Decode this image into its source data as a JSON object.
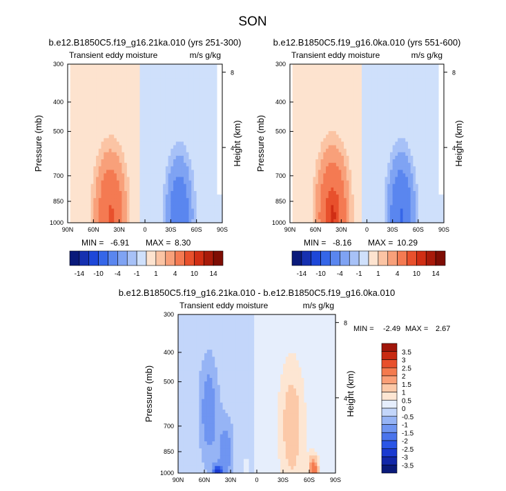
{
  "figure": {
    "title": "SON"
  },
  "colors": {
    "palette": [
      "#0a1a7a",
      "#1530b0",
      "#1e47d8",
      "#3566e8",
      "#5a86ef",
      "#7fa3f3",
      "#a7c1f7",
      "#cfe0fb",
      "#fde3cf",
      "#fbc4a4",
      "#f8a07a",
      "#f47a52",
      "#e8502c",
      "#d02e14",
      "#a81a0a",
      "#7e0d04"
    ],
    "axis": "#000000"
  },
  "chart_data": [
    {
      "type": "heatmap",
      "title": "b.e12.B1850C5.f19_g16.21ka.010 (yrs 251-300)",
      "left_label": "Transient eddy moisture",
      "right_label": "m/s g/kg",
      "xlabel": "",
      "ylabel": "Pressure (mb)",
      "y2label": "Height (km)",
      "xticks": [
        "90N",
        "60N",
        "30N",
        "0",
        "30S",
        "60S",
        "90S"
      ],
      "yticks": [
        300,
        400,
        500,
        700,
        850,
        1000
      ],
      "y2ticks": [
        8,
        4
      ],
      "xlim": [
        90,
        -90
      ],
      "ylim": [
        1000,
        300
      ],
      "min_label": "MIN =",
      "min_value": "-6.91",
      "max_label": "MAX =",
      "max_value": "8.30",
      "background_positive_until": 0,
      "positive_core": {
        "lat": 40,
        "p": 950,
        "max": 8.3
      },
      "negative_core": {
        "lat": -40,
        "p": 940,
        "min": -6.91
      }
    },
    {
      "type": "heatmap",
      "title": "b.e12.B1850C5.f19_g16.0ka.010 (yrs 551-600)",
      "left_label": "Transient eddy moisture",
      "right_label": "m/s g/kg",
      "xlabel": "",
      "ylabel": "Pressure (mb)",
      "y2label": "Height (km)",
      "xticks": [
        "90N",
        "60N",
        "30N",
        "0",
        "30S",
        "60S",
        "90S"
      ],
      "yticks": [
        300,
        400,
        500,
        700,
        850,
        1000
      ],
      "y2ticks": [
        8,
        4
      ],
      "xlim": [
        90,
        -90
      ],
      "ylim": [
        1000,
        300
      ],
      "min_label": "MIN =",
      "min_value": "-8.16",
      "max_label": "MAX =",
      "max_value": "10.29",
      "positive_core": {
        "lat": 40,
        "p": 950,
        "max": 10.29
      },
      "negative_core": {
        "lat": -40,
        "p": 940,
        "min": -8.16
      }
    },
    {
      "type": "heatmap",
      "title": "b.e12.B1850C5.f19_g16.21ka.010 - b.e12.B1850C5.f19_g16.0ka.010",
      "left_label": "Transient eddy moisture",
      "right_label": "m/s g/kg",
      "xlabel": "",
      "ylabel": "Pressure (mb)",
      "y2label": "Height (km)",
      "xticks": [
        "90N",
        "60N",
        "30N",
        "0",
        "30S",
        "60S",
        "90S"
      ],
      "yticks": [
        300,
        400,
        500,
        700,
        850,
        1000
      ],
      "y2ticks": [
        8,
        4
      ],
      "xlim": [
        90,
        -90
      ],
      "ylim": [
        1000,
        300
      ],
      "min_label": "MIN =",
      "min_value": "-2.49",
      "max_label": "MAX =",
      "max_value": "2.67"
    }
  ],
  "colorbars": {
    "top": {
      "labels": [
        "-14",
        "-10",
        "-4",
        "-1",
        "1",
        "4",
        "10",
        "14"
      ]
    },
    "diff": {
      "labels": [
        "3.5",
        "3",
        "2.5",
        "2",
        "1.5",
        "1",
        "0.5",
        "0",
        "-0.5",
        "-1",
        "-1.5",
        "-2",
        "-2.5",
        "-3",
        "-3.5"
      ]
    }
  }
}
